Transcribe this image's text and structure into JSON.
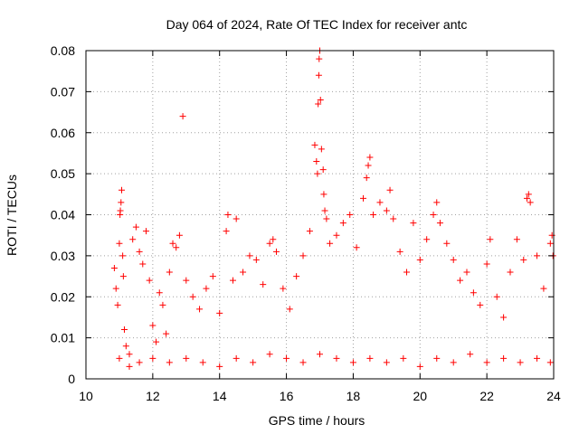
{
  "chart_data": {
    "type": "scatter",
    "title": "Day 064 of 2024, Rate Of TEC Index for receiver antc",
    "xlabel": "GPS time / hours",
    "ylabel": "ROTI / TECUs",
    "xlim": [
      10,
      24
    ],
    "ylim": [
      0,
      0.08
    ],
    "x_ticks": [
      10,
      12,
      14,
      16,
      18,
      20,
      22,
      24
    ],
    "x_tick_labels": [
      "10",
      "12",
      "14",
      "16",
      "18",
      "20",
      "22",
      "24"
    ],
    "y_ticks": [
      0,
      0.01,
      0.02,
      0.03,
      0.04,
      0.05,
      0.06,
      0.07,
      0.08
    ],
    "y_tick_labels": [
      "0",
      "0.01",
      "0.02",
      "0.03",
      "0.04",
      "0.05",
      "0.06",
      "0.07",
      "0.08"
    ],
    "grid": true,
    "marker": "plus",
    "point_color": "#ff0000",
    "series": [
      {
        "points": [
          [
            10.85,
            0.027
          ],
          [
            10.9,
            0.022
          ],
          [
            10.95,
            0.018
          ],
          [
            11.0,
            0.033
          ],
          [
            11.02,
            0.04
          ],
          [
            11.03,
            0.041
          ],
          [
            11.05,
            0.043
          ],
          [
            11.07,
            0.046
          ],
          [
            11.1,
            0.03
          ],
          [
            11.12,
            0.025
          ],
          [
            11.15,
            0.012
          ],
          [
            11.2,
            0.008
          ],
          [
            11.3,
            0.006
          ],
          [
            11.4,
            0.034
          ],
          [
            11.5,
            0.037
          ],
          [
            11.6,
            0.031
          ],
          [
            11.7,
            0.028
          ],
          [
            11.8,
            0.036
          ],
          [
            11.9,
            0.024
          ],
          [
            12.0,
            0.013
          ],
          [
            12.1,
            0.009
          ],
          [
            12.2,
            0.021
          ],
          [
            12.3,
            0.018
          ],
          [
            12.4,
            0.011
          ],
          [
            12.5,
            0.026
          ],
          [
            12.6,
            0.033
          ],
          [
            12.7,
            0.032
          ],
          [
            12.8,
            0.035
          ],
          [
            12.9,
            0.064
          ],
          [
            13.0,
            0.024
          ],
          [
            13.2,
            0.02
          ],
          [
            13.4,
            0.017
          ],
          [
            13.6,
            0.022
          ],
          [
            13.8,
            0.025
          ],
          [
            14.0,
            0.016
          ],
          [
            14.2,
            0.036
          ],
          [
            14.25,
            0.04
          ],
          [
            14.4,
            0.024
          ],
          [
            14.5,
            0.039
          ],
          [
            14.7,
            0.026
          ],
          [
            14.9,
            0.03
          ],
          [
            15.1,
            0.029
          ],
          [
            15.3,
            0.023
          ],
          [
            15.5,
            0.033
          ],
          [
            15.6,
            0.034
          ],
          [
            15.7,
            0.031
          ],
          [
            15.9,
            0.022
          ],
          [
            16.1,
            0.017
          ],
          [
            16.3,
            0.025
          ],
          [
            16.5,
            0.03
          ],
          [
            16.7,
            0.036
          ],
          [
            16.85,
            0.057
          ],
          [
            16.9,
            0.053
          ],
          [
            16.93,
            0.05
          ],
          [
            16.95,
            0.067
          ],
          [
            16.97,
            0.074
          ],
          [
            16.98,
            0.078
          ],
          [
            17.0,
            0.08
          ],
          [
            17.02,
            0.068
          ],
          [
            17.05,
            0.056
          ],
          [
            17.1,
            0.051
          ],
          [
            17.12,
            0.045
          ],
          [
            17.15,
            0.041
          ],
          [
            17.2,
            0.039
          ],
          [
            17.3,
            0.033
          ],
          [
            17.5,
            0.035
          ],
          [
            17.7,
            0.038
          ],
          [
            17.9,
            0.04
          ],
          [
            18.1,
            0.032
          ],
          [
            18.3,
            0.044
          ],
          [
            18.4,
            0.049
          ],
          [
            18.45,
            0.052
          ],
          [
            18.5,
            0.054
          ],
          [
            18.6,
            0.04
          ],
          [
            18.8,
            0.043
          ],
          [
            19.0,
            0.041
          ],
          [
            19.1,
            0.046
          ],
          [
            19.2,
            0.039
          ],
          [
            19.4,
            0.031
          ],
          [
            19.6,
            0.026
          ],
          [
            19.8,
            0.038
          ],
          [
            20.0,
            0.029
          ],
          [
            20.2,
            0.034
          ],
          [
            20.4,
            0.04
          ],
          [
            20.5,
            0.043
          ],
          [
            20.6,
            0.038
          ],
          [
            20.8,
            0.033
          ],
          [
            21.0,
            0.029
          ],
          [
            21.2,
            0.024
          ],
          [
            21.4,
            0.026
          ],
          [
            21.6,
            0.021
          ],
          [
            21.8,
            0.018
          ],
          [
            22.0,
            0.028
          ],
          [
            22.1,
            0.034
          ],
          [
            22.3,
            0.02
          ],
          [
            22.5,
            0.015
          ],
          [
            22.7,
            0.026
          ],
          [
            22.9,
            0.034
          ],
          [
            23.1,
            0.029
          ],
          [
            23.2,
            0.044
          ],
          [
            23.25,
            0.045
          ],
          [
            23.3,
            0.043
          ],
          [
            23.5,
            0.03
          ],
          [
            23.7,
            0.022
          ],
          [
            23.9,
            0.033
          ],
          [
            23.95,
            0.035
          ],
          [
            23.98,
            0.03
          ],
          [
            11.0,
            0.005
          ],
          [
            11.3,
            0.003
          ],
          [
            11.6,
            0.004
          ],
          [
            12.0,
            0.005
          ],
          [
            12.5,
            0.004
          ],
          [
            13.0,
            0.005
          ],
          [
            13.5,
            0.004
          ],
          [
            14.0,
            0.003
          ],
          [
            14.5,
            0.005
          ],
          [
            15.0,
            0.004
          ],
          [
            15.5,
            0.006
          ],
          [
            16.0,
            0.005
          ],
          [
            16.5,
            0.004
          ],
          [
            17.0,
            0.006
          ],
          [
            17.5,
            0.005
          ],
          [
            18.0,
            0.004
          ],
          [
            18.5,
            0.005
          ],
          [
            19.0,
            0.004
          ],
          [
            19.5,
            0.005
          ],
          [
            20.0,
            0.003
          ],
          [
            20.5,
            0.005
          ],
          [
            21.0,
            0.004
          ],
          [
            21.5,
            0.006
          ],
          [
            22.0,
            0.004
          ],
          [
            22.5,
            0.005
          ],
          [
            23.0,
            0.004
          ],
          [
            23.5,
            0.005
          ],
          [
            23.9,
            0.004
          ]
        ]
      }
    ]
  }
}
